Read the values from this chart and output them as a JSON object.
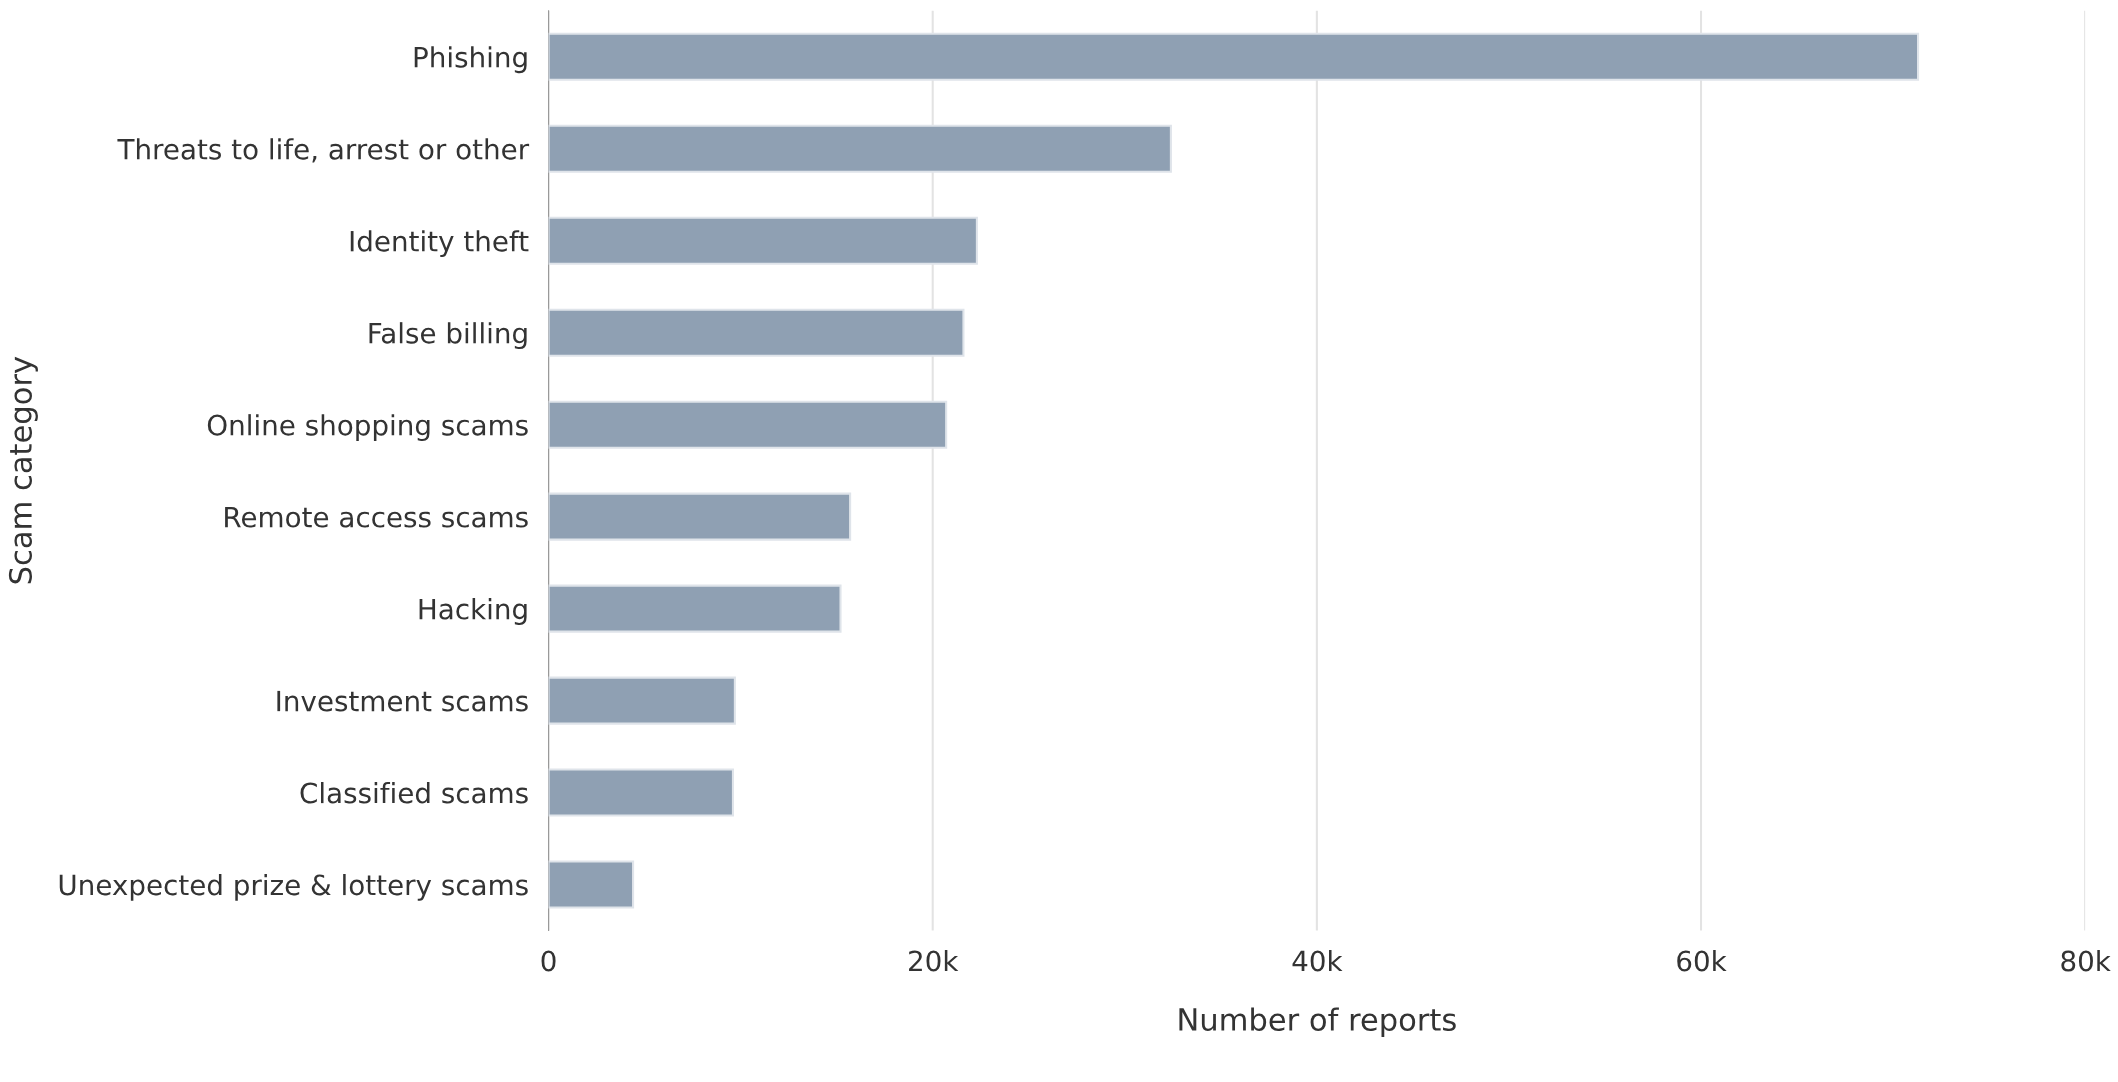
{
  "chart_data": {
    "type": "bar",
    "orientation": "horizontal",
    "xlabel": "Number of reports",
    "ylabel": "Scam category",
    "categories": [
      "Phishing",
      "Threats to life, arrest or other",
      "Identity theft",
      "False billing",
      "Online shopping scams",
      "Remote access scams",
      "Hacking",
      "Investment scams",
      "Classified scams",
      "Unexpected prize & lottery scams"
    ],
    "values": [
      71300,
      32400,
      22300,
      21600,
      20700,
      15700,
      15200,
      9700,
      9600,
      4400
    ],
    "color": "#8fa0b3",
    "xlim": [
      0,
      80000
    ],
    "xticks": [
      {
        "value": 0,
        "label": "0"
      },
      {
        "value": 20000,
        "label": "20k"
      },
      {
        "value": 40000,
        "label": "40k"
      },
      {
        "value": 60000,
        "label": "60k"
      },
      {
        "value": 80000,
        "label": "80k"
      }
    ],
    "grid": "x"
  }
}
